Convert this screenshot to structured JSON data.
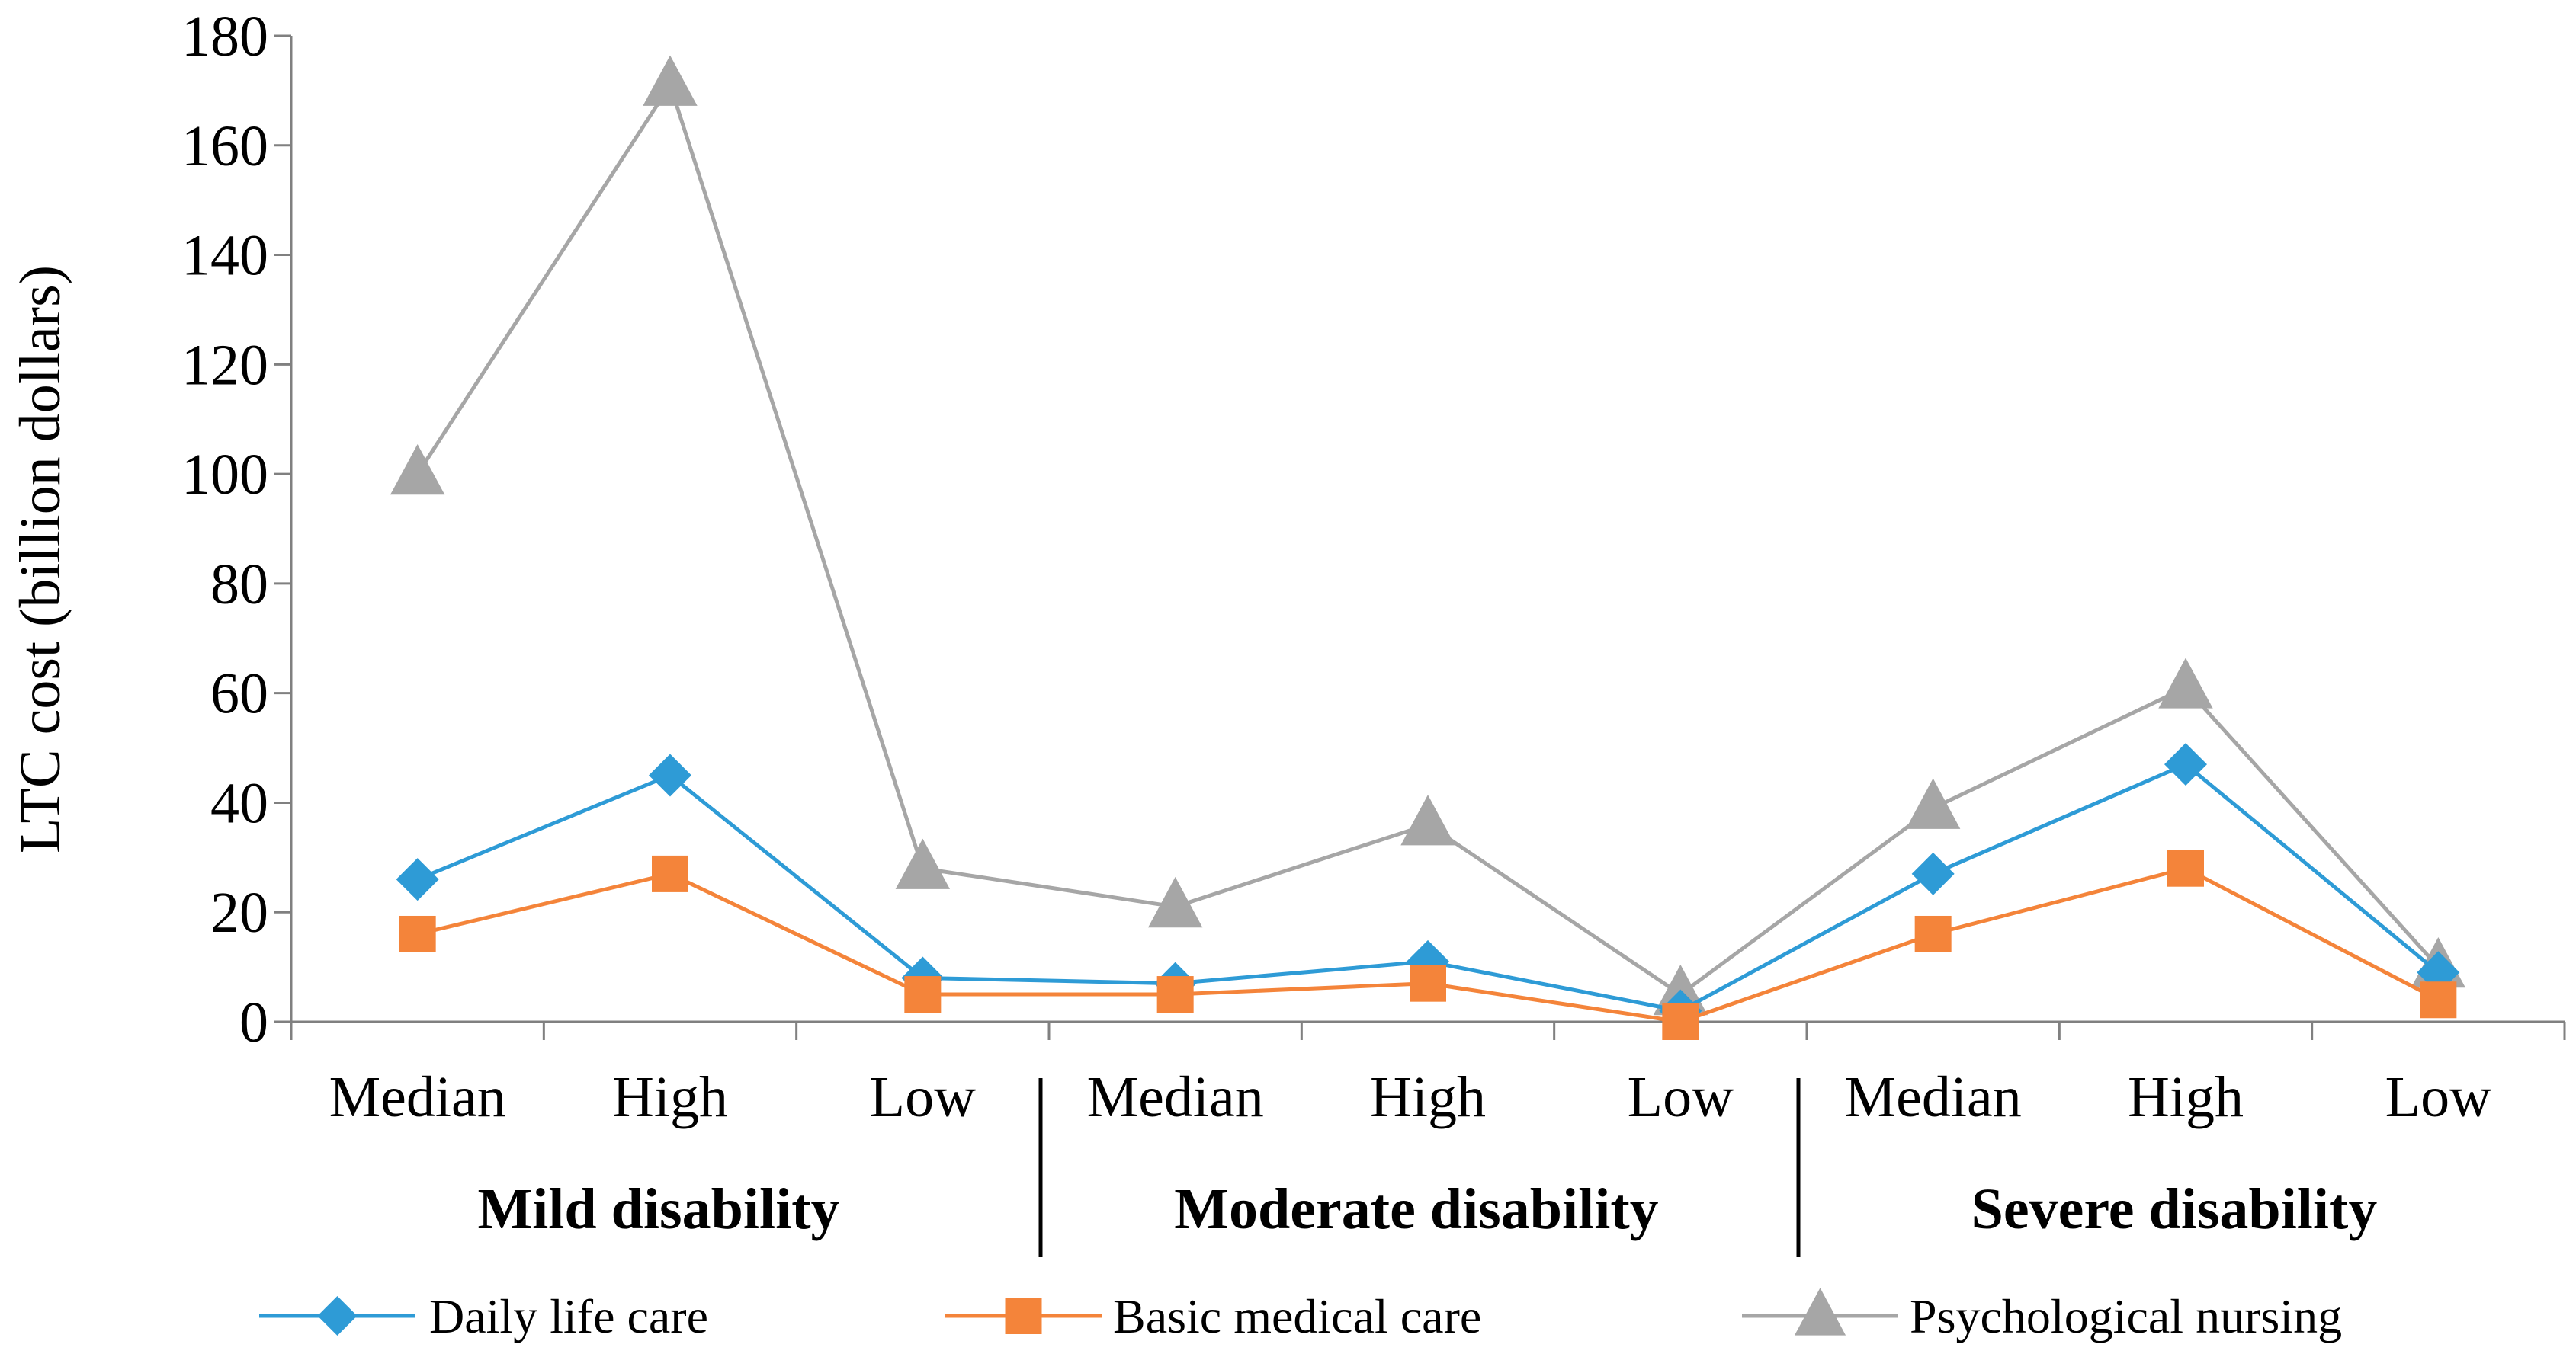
{
  "chart_data": {
    "type": "line",
    "ylabel": "LTC cost (billion dollars)",
    "xlabel": "",
    "ylim": [
      0,
      180
    ],
    "y_ticks": [
      0,
      20,
      40,
      60,
      80,
      100,
      120,
      140,
      160,
      180
    ],
    "categories": [
      "Median",
      "High",
      "Low",
      "Median",
      "High",
      "Low",
      "Median",
      "High",
      "Low"
    ],
    "groups": [
      {
        "label": "Mild  disability",
        "span": [
          0,
          2
        ]
      },
      {
        "label": "Moderate   disability",
        "span": [
          3,
          5
        ]
      },
      {
        "label": "Severe disability",
        "span": [
          6,
          8
        ]
      }
    ],
    "grid": false,
    "legend_position": "bottom",
    "series": [
      {
        "name": "Daily life care",
        "color": "#2e9bd6",
        "marker": "diamond",
        "values": [
          26,
          45,
          8,
          7,
          11,
          2,
          27,
          47,
          9
        ]
      },
      {
        "name": "Basic medical care",
        "color": "#f4843a",
        "marker": "square",
        "values": [
          16,
          27,
          5,
          5,
          7,
          0,
          16,
          28,
          4
        ]
      },
      {
        "name": "Psychological nursing",
        "color": "#a6a6a6",
        "marker": "triangle",
        "values": [
          100,
          171,
          28,
          21,
          36,
          5,
          39,
          61,
          10
        ]
      }
    ]
  }
}
